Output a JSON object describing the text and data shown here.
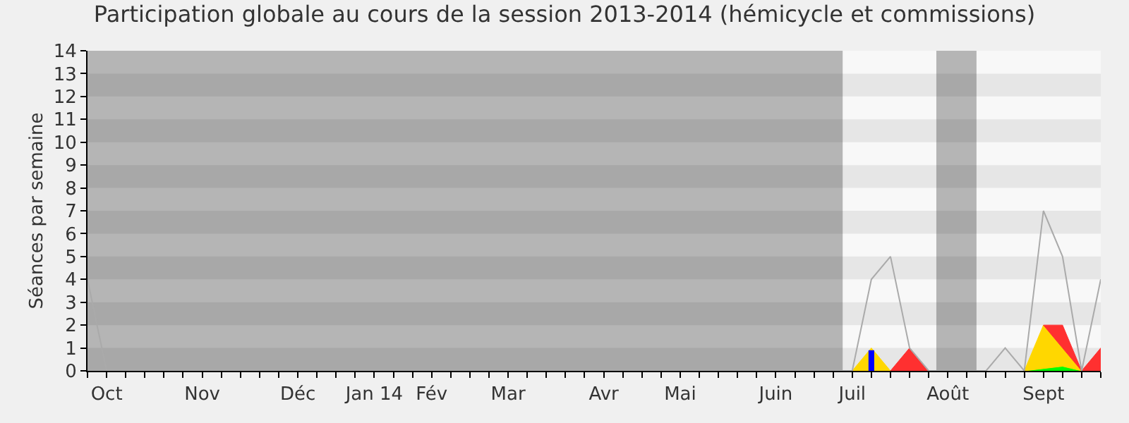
{
  "chart_data": {
    "type": "area",
    "title": "Participation globale au cours de la session 2013-2014 (hémicycle et commissions)",
    "ylabel": "Séances par semaine",
    "stacked": true,
    "categories": [
      null,
      "Oct",
      null,
      null,
      null,
      null,
      "Nov",
      null,
      null,
      null,
      null,
      "Déc",
      null,
      null,
      null,
      "Jan 14",
      null,
      null,
      "Fév",
      null,
      null,
      null,
      "Mar",
      null,
      null,
      null,
      null,
      "Avr",
      null,
      null,
      null,
      "Mai",
      null,
      null,
      null,
      null,
      "Juin",
      null,
      null,
      null,
      "Juil",
      null,
      null,
      null,
      null,
      "Août",
      null,
      null,
      null,
      null,
      "Sept",
      null,
      null,
      null
    ],
    "ylim": [
      0,
      14
    ],
    "yticks": [
      0,
      1,
      2,
      3,
      4,
      5,
      6,
      7,
      8,
      9,
      10,
      11,
      12,
      13,
      14
    ],
    "series": [
      {
        "type": "line",
        "color": "#aaaaaa",
        "values": [
          4,
          0,
          0,
          0,
          0,
          0,
          0,
          0,
          0,
          0,
          0,
          0,
          0,
          0,
          0,
          0,
          0,
          0,
          0,
          0,
          0,
          0,
          0,
          0,
          0,
          0,
          0,
          0,
          0,
          0,
          0,
          0,
          0,
          0,
          0,
          0,
          0,
          0,
          0,
          0,
          0,
          4,
          5,
          1,
          0,
          0,
          0,
          0,
          1,
          0,
          7,
          5,
          0,
          4
        ]
      },
      {
        "color": "#00ff00",
        "values": [
          null,
          null,
          null,
          null,
          null,
          null,
          null,
          null,
          null,
          null,
          null,
          null,
          null,
          null,
          null,
          null,
          null,
          null,
          null,
          null,
          null,
          null,
          null,
          null,
          null,
          null,
          null,
          null,
          null,
          null,
          null,
          null,
          null,
          null,
          null,
          null,
          null,
          null,
          null,
          null,
          null,
          null,
          null,
          null,
          null,
          null,
          null,
          null,
          null,
          0,
          0.1,
          0.2,
          0,
          null
        ]
      },
      {
        "color": "#ffd700",
        "values": [
          null,
          null,
          null,
          null,
          null,
          null,
          null,
          null,
          null,
          null,
          null,
          null,
          null,
          null,
          null,
          null,
          null,
          null,
          null,
          null,
          null,
          null,
          null,
          null,
          null,
          null,
          null,
          null,
          null,
          null,
          null,
          null,
          null,
          null,
          null,
          null,
          null,
          null,
          null,
          null,
          0,
          1,
          0,
          null,
          null,
          null,
          null,
          null,
          null,
          0,
          1.9,
          0.8,
          0,
          null
        ]
      },
      {
        "color": "#ff3030",
        "values": [
          null,
          null,
          null,
          null,
          null,
          null,
          null,
          null,
          null,
          null,
          null,
          null,
          null,
          null,
          null,
          null,
          null,
          null,
          null,
          null,
          null,
          null,
          null,
          null,
          null,
          null,
          null,
          null,
          null,
          null,
          null,
          null,
          null,
          null,
          null,
          null,
          null,
          null,
          null,
          null,
          null,
          null,
          0,
          1,
          0,
          null,
          null,
          null,
          null,
          null,
          0,
          1,
          0,
          1
        ]
      },
      {
        "type": "bar",
        "color": "#0000ff",
        "values": [
          null,
          null,
          null,
          null,
          null,
          null,
          null,
          null,
          null,
          null,
          null,
          null,
          null,
          null,
          null,
          null,
          null,
          null,
          null,
          null,
          null,
          null,
          null,
          null,
          null,
          null,
          null,
          null,
          null,
          null,
          null,
          null,
          null,
          null,
          null,
          null,
          null,
          null,
          null,
          null,
          null,
          0.9,
          null,
          null,
          null,
          null,
          null,
          null,
          null,
          null,
          null,
          null,
          null,
          null
        ]
      }
    ]
  }
}
